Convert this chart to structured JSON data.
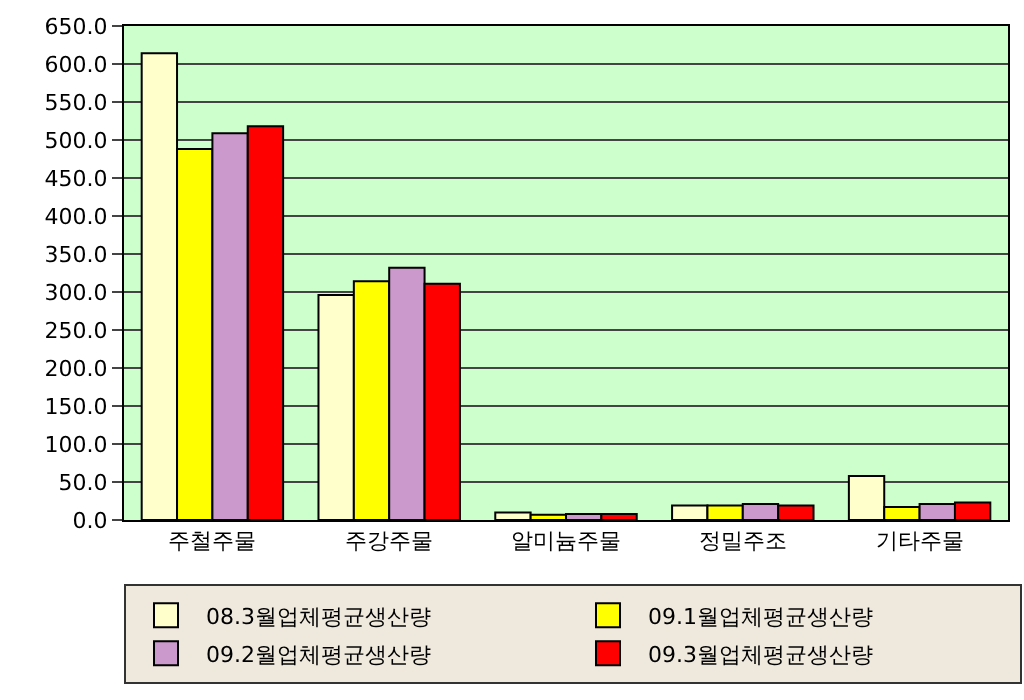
{
  "chart_data": {
    "type": "bar",
    "categories": [
      "주철주물",
      "주강주물",
      "알미늄주물",
      "정밀주조",
      "기타주물"
    ],
    "series": [
      {
        "name": "08.3월업체평균생산량",
        "color": "#ffffcc",
        "values": [
          614,
          296,
          10,
          19,
          58
        ]
      },
      {
        "name": "09.1월업체평균생산량",
        "color": "#ffff00",
        "values": [
          488,
          314,
          7,
          19,
          17
        ]
      },
      {
        "name": "09.2월업체평균생산량",
        "color": "#cc99cc",
        "values": [
          509,
          332,
          8,
          21,
          21
        ]
      },
      {
        "name": "09.3월업체평균생산량",
        "color": "#ff0000",
        "values": [
          518,
          311,
          8,
          19,
          23
        ]
      }
    ],
    "ylim": [
      0,
      650
    ],
    "yticks": [
      {
        "value": 0,
        "label": "0.0"
      },
      {
        "value": 50,
        "label": "50.0"
      },
      {
        "value": 100,
        "label": "100.0"
      },
      {
        "value": 150,
        "label": "150.0"
      },
      {
        "value": 200,
        "label": "200.0"
      },
      {
        "value": 250,
        "label": "250.0"
      },
      {
        "value": 300,
        "label": "300.0"
      },
      {
        "value": 350,
        "label": "350.0"
      },
      {
        "value": 400,
        "label": "400.0"
      },
      {
        "value": 450,
        "label": "450.0"
      },
      {
        "value": 500,
        "label": "500.0"
      },
      {
        "value": 550,
        "label": "550.0"
      },
      {
        "value": 600,
        "label": "600.0"
      },
      {
        "value": 650,
        "label": "650.0"
      }
    ],
    "grid": "y",
    "legend": "bottom"
  }
}
